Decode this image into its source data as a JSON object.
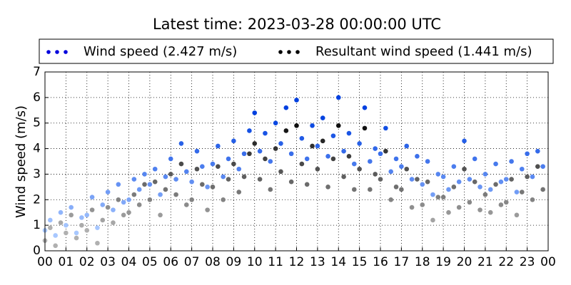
{
  "chart_data": {
    "type": "scatter",
    "title": "Latest time: 2023-03-28 00:00:00 UTC",
    "ylabel": "Wind speed (m/s)",
    "xlim": [
      0,
      24
    ],
    "ylim": [
      0,
      7
    ],
    "yticks": [
      0,
      1,
      2,
      3,
      4,
      5,
      6,
      7
    ],
    "xticks": [
      {
        "value": 0,
        "label": "00"
      },
      {
        "value": 1,
        "label": "01"
      },
      {
        "value": 2,
        "label": "02"
      },
      {
        "value": 3,
        "label": "03"
      },
      {
        "value": 4,
        "label": "04"
      },
      {
        "value": 5,
        "label": "05"
      },
      {
        "value": 6,
        "label": "06"
      },
      {
        "value": 7,
        "label": "07"
      },
      {
        "value": 8,
        "label": "08"
      },
      {
        "value": 9,
        "label": "09"
      },
      {
        "value": 10,
        "label": "10"
      },
      {
        "value": 11,
        "label": "11"
      },
      {
        "value": 12,
        "label": "12"
      },
      {
        "value": 13,
        "label": "13"
      },
      {
        "value": 14,
        "label": "14"
      },
      {
        "value": 15,
        "label": "15"
      },
      {
        "value": 16,
        "label": "16"
      },
      {
        "value": 17,
        "label": "17"
      },
      {
        "value": 18,
        "label": "18"
      },
      {
        "value": 19,
        "label": "19"
      },
      {
        "value": 20,
        "label": "20"
      },
      {
        "value": 21,
        "label": "21"
      },
      {
        "value": 22,
        "label": "22"
      },
      {
        "value": 23,
        "label": "23"
      },
      {
        "value": 24,
        "label": "00"
      }
    ],
    "grid": true,
    "x": [
      0,
      0.25,
      0.5,
      0.75,
      1,
      1.25,
      1.5,
      1.75,
      2,
      2.25,
      2.5,
      2.75,
      3,
      3.25,
      3.5,
      3.75,
      4,
      4.25,
      4.5,
      4.75,
      5,
      5.25,
      5.5,
      5.75,
      6,
      6.25,
      6.5,
      6.75,
      7,
      7.25,
      7.5,
      7.75,
      8,
      8.25,
      8.5,
      8.75,
      9,
      9.25,
      9.5,
      9.75,
      10,
      10.25,
      10.5,
      10.75,
      11,
      11.25,
      11.5,
      11.75,
      12,
      12.25,
      12.5,
      12.75,
      13,
      13.25,
      13.5,
      13.75,
      14,
      14.25,
      14.5,
      14.75,
      15,
      15.25,
      15.5,
      15.75,
      16,
      16.25,
      16.5,
      16.75,
      17,
      17.25,
      17.5,
      17.75,
      18,
      18.25,
      18.5,
      18.75,
      19,
      19.25,
      19.5,
      19.75,
      20,
      20.25,
      20.5,
      20.75,
      21,
      21.25,
      21.5,
      21.75,
      22,
      22.25,
      22.5,
      22.75,
      23,
      23.25,
      23.5,
      23.75
    ],
    "series": [
      {
        "name": "Wind speed (2.427 m/s)",
        "color": "#0000dd",
        "colormap": [
          "#a8c8ff",
          "#0040e0"
        ],
        "values": [
          0.8,
          1.2,
          0.6,
          1.5,
          1.0,
          1.7,
          0.7,
          1.3,
          1.4,
          2.1,
          0.9,
          1.8,
          2.3,
          1.6,
          2.6,
          1.9,
          2.0,
          2.8,
          2.4,
          3.0,
          2.6,
          3.2,
          2.2,
          2.9,
          3.6,
          2.8,
          4.2,
          3.1,
          2.7,
          3.9,
          3.3,
          2.5,
          3.4,
          4.1,
          2.9,
          3.6,
          4.3,
          3.2,
          3.8,
          4.7,
          5.4,
          3.9,
          4.6,
          3.5,
          5.0,
          4.2,
          5.6,
          3.8,
          5.9,
          4.4,
          3.6,
          4.9,
          4.1,
          5.2,
          3.7,
          4.5,
          6.0,
          3.9,
          4.6,
          3.4,
          4.2,
          5.6,
          3.5,
          4.0,
          3.8,
          4.8,
          3.1,
          3.6,
          3.3,
          4.1,
          2.8,
          3.7,
          2.6,
          3.5,
          2.2,
          3.0,
          2.9,
          2.4,
          3.3,
          2.7,
          4.3,
          2.8,
          3.6,
          2.5,
          3.0,
          2.4,
          3.4,
          2.7,
          2.8,
          3.5,
          2.3,
          3.2,
          3.8,
          2.9,
          3.9,
          3.3
        ]
      },
      {
        "name": "Resultant wind speed (1.441 m/s)",
        "color": "#000000",
        "colormap": [
          "#b0b0b0",
          "#000000"
        ],
        "values": [
          0.4,
          0.9,
          0.2,
          1.1,
          0.7,
          1.4,
          0.5,
          1.0,
          0.8,
          1.6,
          0.3,
          1.2,
          1.7,
          1.1,
          2.0,
          1.4,
          1.5,
          2.2,
          1.8,
          2.6,
          2.0,
          2.7,
          1.4,
          2.4,
          3.0,
          2.2,
          3.4,
          1.8,
          2.0,
          3.2,
          2.6,
          1.6,
          2.5,
          3.3,
          2.0,
          2.8,
          3.4,
          2.3,
          2.9,
          3.8,
          4.2,
          2.8,
          3.6,
          2.4,
          4.0,
          3.1,
          4.7,
          2.7,
          4.9,
          3.4,
          2.6,
          4.1,
          3.2,
          4.3,
          2.5,
          3.6,
          4.9,
          2.9,
          3.7,
          2.4,
          3.2,
          4.8,
          2.4,
          3.0,
          2.8,
          3.9,
          2.0,
          2.5,
          2.4,
          3.2,
          1.7,
          2.8,
          1.8,
          2.7,
          1.2,
          2.1,
          2.1,
          1.5,
          2.5,
          1.7,
          3.2,
          1.9,
          2.7,
          1.6,
          2.2,
          1.5,
          2.6,
          1.8,
          1.9,
          2.8,
          1.4,
          2.3,
          2.9,
          2.0,
          3.3,
          2.4
        ]
      }
    ]
  }
}
